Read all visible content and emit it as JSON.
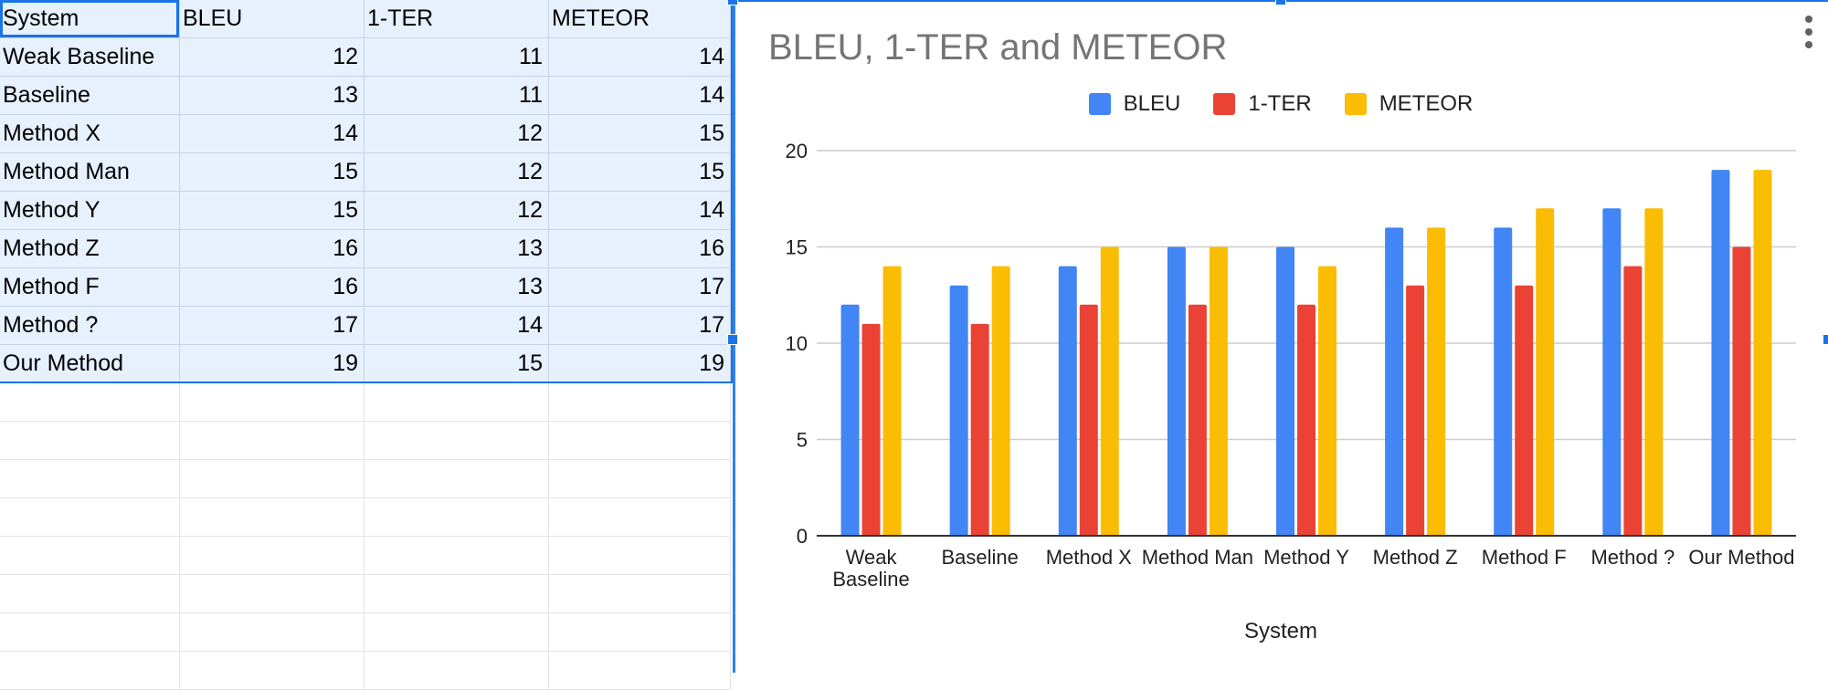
{
  "sheet": {
    "headers": [
      "System",
      "BLEU",
      "1-TER",
      "METEOR"
    ],
    "rows": [
      [
        "Weak Baseline",
        "12",
        "11",
        "14"
      ],
      [
        "Baseline",
        "13",
        "11",
        "14"
      ],
      [
        "Method X",
        "14",
        "12",
        "15"
      ],
      [
        "Method Man",
        "15",
        "12",
        "15"
      ],
      [
        "Method Y",
        "15",
        "12",
        "14"
      ],
      [
        "Method Z",
        "16",
        "13",
        "16"
      ],
      [
        "Method F",
        "16",
        "13",
        "17"
      ],
      [
        "Method ?",
        "17",
        "14",
        "17"
      ],
      [
        "Our Method",
        "19",
        "15",
        "19"
      ]
    ],
    "empty_rows": 8
  },
  "chart_data": {
    "type": "bar",
    "title": "BLEU, 1-TER and METEOR",
    "xlabel": "System",
    "ylabel": "",
    "ylim": [
      0,
      20
    ],
    "yticks": [
      0,
      5,
      10,
      15,
      20
    ],
    "legend_position": "top",
    "grid": true,
    "categories": [
      "Weak Baseline",
      "Baseline",
      "Method X",
      "Method Man",
      "Method Y",
      "Method Z",
      "Method F",
      "Method ?",
      "Our Method"
    ],
    "series": [
      {
        "name": "BLEU",
        "color": "#4285f4",
        "values": [
          12,
          13,
          14,
          15,
          15,
          16,
          16,
          17,
          19
        ]
      },
      {
        "name": "1-TER",
        "color": "#ea4335",
        "values": [
          11,
          11,
          12,
          12,
          12,
          13,
          13,
          14,
          15
        ]
      },
      {
        "name": "METEOR",
        "color": "#fbbc04",
        "values": [
          14,
          14,
          15,
          15,
          14,
          16,
          17,
          17,
          19
        ]
      }
    ]
  },
  "icons": {
    "chart_menu": "more-vert-icon"
  }
}
